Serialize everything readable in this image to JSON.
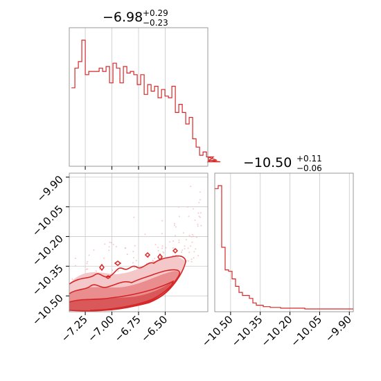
{
  "chart_data": [
    {
      "type": "histogram",
      "panel": "top-left",
      "title": {
        "median": "−6.98",
        "upper": "+0.29",
        "lower": "−0.23"
      },
      "xlim": [
        -7.4,
        -6.1
      ],
      "grid": true,
      "bin_edges_start": -7.38,
      "bin_width": 0.0325,
      "counts": [
        46,
        58,
        62,
        75,
        54,
        56,
        56,
        56,
        58,
        56,
        59,
        49,
        61,
        58,
        49,
        59,
        55,
        56,
        54,
        48,
        54,
        42,
        48,
        44,
        47,
        40,
        45,
        41,
        40,
        47,
        31,
        36,
        31,
        24,
        28,
        15,
        10,
        5,
        7,
        4,
        1,
        4,
        2,
        1
      ],
      "color": "#d62728"
    },
    {
      "type": "histogram",
      "panel": "bottom-right",
      "title": {
        "median": "−10.50",
        "upper": "+0.11",
        "lower": "−0.06"
      },
      "xlim": [
        -10.58,
        -9.88
      ],
      "grid": true,
      "xticks": [
        "−10.50",
        "−10.35",
        "−10.20",
        "−10.05",
        "−9.90"
      ],
      "bin_edges_start": -10.58,
      "bin_width": 0.0175,
      "counts": [
        160,
        164,
        82,
        52,
        50,
        40,
        30,
        22,
        18,
        18,
        14,
        8,
        5,
        5,
        3,
        3,
        2,
        2,
        2,
        1,
        1,
        1,
        1,
        1,
        1,
        1,
        0,
        0,
        0,
        0,
        0,
        0,
        0,
        0,
        0,
        0,
        0,
        0,
        0,
        0
      ],
      "color": "#d62728"
    },
    {
      "type": "contour",
      "panel": "bottom-left",
      "xlim": [
        -7.4,
        -6.1
      ],
      "ylim": [
        -10.58,
        -9.88
      ],
      "grid": true,
      "xticks": [
        "−7.25",
        "−7.00",
        "−6.75",
        "−6.50"
      ],
      "yticks": [
        "−9.90",
        "−10.05",
        "−10.20",
        "−10.35",
        "−10.50"
      ],
      "color": "#d62728"
    }
  ]
}
